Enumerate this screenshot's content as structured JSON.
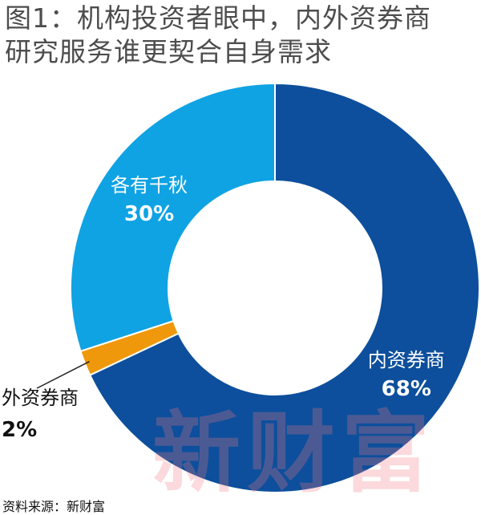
{
  "title_lines": [
    "图1：机构投资者眼中，内外资券商",
    "研究服务谁更契合自身需求"
  ],
  "source": "资料来源：新财富",
  "watermark": "新财富",
  "chart_data": {
    "type": "pie",
    "donut": true,
    "categories": [
      "内资券商",
      "外资券商",
      "各有千秋"
    ],
    "values": [
      68,
      2,
      30
    ],
    "value_labels": [
      "68%",
      "2%",
      "30%"
    ],
    "colors": [
      "#0d4f9c",
      "#f0980b",
      "#0fa3e3"
    ],
    "label_colors": [
      "#ffffff",
      "#111111",
      "#ffffff"
    ],
    "start_angle_deg": 0,
    "direction": "clockwise"
  }
}
